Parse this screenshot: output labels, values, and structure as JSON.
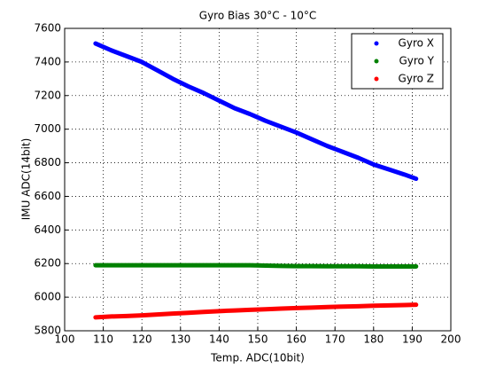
{
  "chart_data": {
    "type": "line",
    "title": "Gyro Bias 30°C - 10°C",
    "x_label": "Temp. ADC(10bit)",
    "y_label": "IMU ADC(14bit)",
    "x": [
      108,
      112,
      116,
      120,
      124,
      128,
      132,
      136,
      140,
      144,
      148,
      152,
      156,
      160,
      164,
      168,
      172,
      176,
      180,
      184,
      188,
      191
    ],
    "series": [
      {
        "name": "Gyro X",
        "color": "#0000ff",
        "values": [
          7510,
          7470,
          7435,
          7400,
          7350,
          7300,
          7255,
          7215,
          7170,
          7125,
          7090,
          7050,
          7015,
          6980,
          6940,
          6900,
          6865,
          6830,
          6790,
          6760,
          6730,
          6705
        ]
      },
      {
        "name": "Gyro Y",
        "color": "#008000",
        "values": [
          6190,
          6190,
          6190,
          6190,
          6190,
          6190,
          6190,
          6190,
          6190,
          6190,
          6190,
          6188,
          6186,
          6185,
          6185,
          6184,
          6184,
          6184,
          6183,
          6183,
          6183,
          6183
        ]
      },
      {
        "name": "Gyro Z",
        "color": "#ff0000",
        "values": [
          5880,
          5885,
          5888,
          5892,
          5897,
          5902,
          5907,
          5912,
          5917,
          5921,
          5925,
          5928,
          5932,
          5935,
          5938,
          5941,
          5944,
          5946,
          5949,
          5951,
          5953,
          5955
        ]
      }
    ],
    "xlim": [
      100,
      200
    ],
    "xticks": [
      100,
      110,
      120,
      130,
      140,
      150,
      160,
      170,
      180,
      190,
      200
    ],
    "ylim": [
      5800,
      7600
    ],
    "yticks": [
      5800,
      6000,
      6200,
      6400,
      6600,
      6800,
      7000,
      7200,
      7400,
      7600
    ],
    "grid": true,
    "legend": "top-right"
  }
}
